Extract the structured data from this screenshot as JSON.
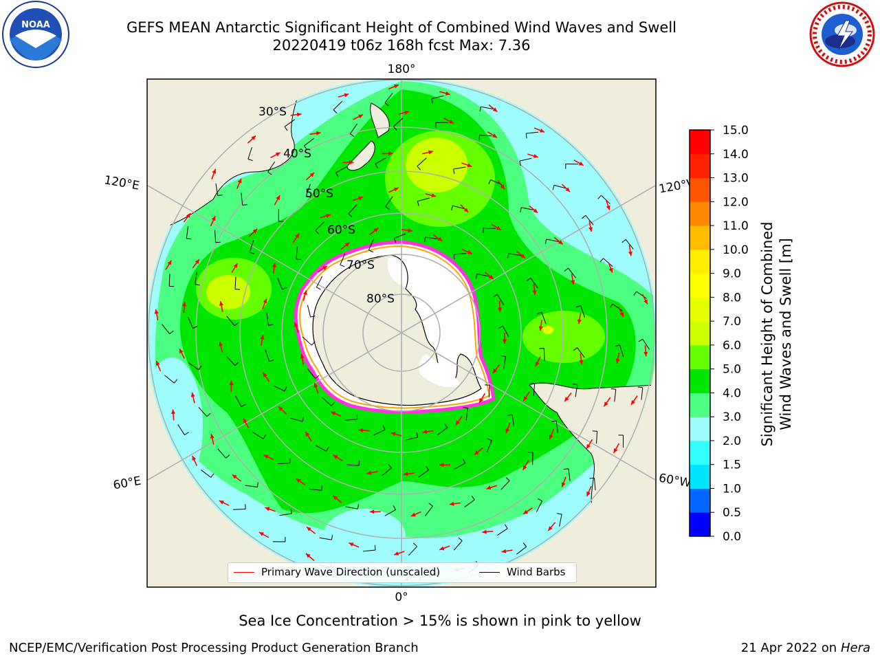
{
  "title": {
    "line1": "GEFS MEAN Antarctic Significant Height of Combined Wind Waves and Swell",
    "line2": "20220419 t06z 168h fcst   Max: 7.36"
  },
  "logos": {
    "noaa": {
      "text": "NOAA",
      "icon": "noaa-logo-icon"
    },
    "nws": {
      "icon": "nws-logo-icon"
    }
  },
  "map": {
    "projection": "south-polar-stereographic",
    "longitude_labels": {
      "top": "180°",
      "bottom": "0°",
      "upper_left": "120°E",
      "upper_right": "120°W",
      "lower_left": "60°E",
      "lower_right": "60°W"
    },
    "latitude_labels": [
      "30°S",
      "40°S",
      "50°S",
      "60°S",
      "70°S",
      "80°S"
    ],
    "legend": {
      "wave": "Primary Wave Direction (unscaled)",
      "barb": "Wind Barbs"
    },
    "colors": {
      "ocean_low": "#9ffcfd",
      "land": "#efeedc",
      "ice": "#ffffff",
      "ice_edge": "#ff33dd",
      "wave_arrow": "#ff0000",
      "wind_barb": "#000000"
    }
  },
  "colorbar": {
    "label": "Significant Height of Combined Wind Waves and Swell [m]",
    "label_line1": "Significant Height of Combined",
    "label_line2": "Wind Waves and Swell [m]",
    "ticks": [
      "0.0",
      "0.5",
      "1.0",
      "1.5",
      "2.0",
      "3.0",
      "4.0",
      "5.0",
      "6.0",
      "7.0",
      "8.0",
      "9.0",
      "10.0",
      "11.0",
      "12.0",
      "13.0",
      "14.0",
      "15.0"
    ],
    "colors": [
      "#0000ff",
      "#0066ff",
      "#00e5ff",
      "#33ffff",
      "#9ffcfd",
      "#4dff80",
      "#00e600",
      "#66ff00",
      "#ccff00",
      "#e5ff00",
      "#ffff00",
      "#ffee00",
      "#ffbb00",
      "#ff8800",
      "#ff5500",
      "#ff2200",
      "#ff0000"
    ]
  },
  "footer": {
    "ice_note": "Sea Ice Concentration > 15% is shown in pink to yellow",
    "credit": "NCEP/EMC/Verification Post Processing Product Generation Branch",
    "date": "21 Apr 2022 on",
    "host": "Hera"
  }
}
